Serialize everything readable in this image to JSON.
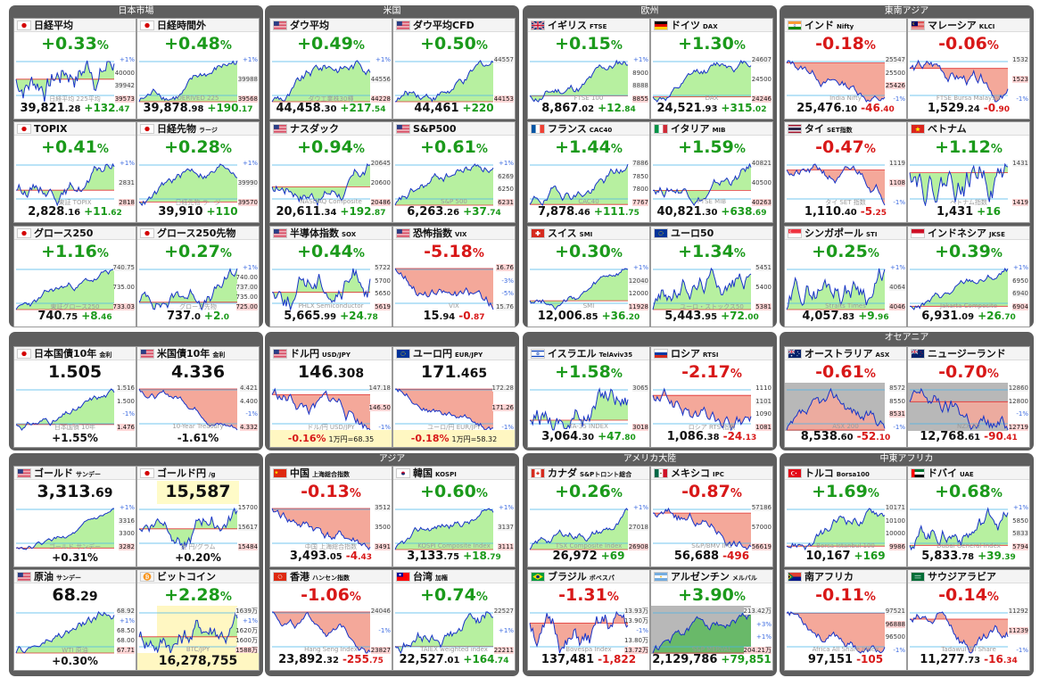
{
  "groups": [
    {
      "title": "日本市場"
    },
    {
      "title": "米国"
    },
    {
      "title": "欧州"
    },
    {
      "title": "東南アジア"
    },
    {
      "title": ""
    },
    {
      "title": ""
    },
    {
      "title": ""
    },
    {
      "title": "オセアニア"
    },
    {
      "title": ""
    },
    {
      "title": "アジア"
    },
    {
      "title": "アメリカ大陸"
    },
    {
      "title": "中東アフリカ"
    }
  ],
  "tiles": [
    {
      "name": "日経平均",
      "sub": "",
      "flag": "jp",
      "chg": "+0.33",
      "dir": "up",
      "ax": [
        "+1%",
        "40000",
        "39942",
        "39573"
      ],
      "axk": [
        "p",
        "",
        "w",
        "r"
      ],
      "vi": "39,821",
      "vd": ".28",
      "d": "+132",
      "dd": ".47",
      "wm": "日経平均 225平均"
    },
    {
      "name": "日経時間外",
      "sub": "",
      "flag": "jp",
      "chg": "+0.48",
      "dir": "up",
      "ax": [
        "+1%",
        "39988",
        "39568"
      ],
      "axk": [
        "p",
        "w",
        "r"
      ],
      "vi": "39,878",
      "vd": ".98",
      "d": "+190",
      "dd": ".17",
      "wm": "DERIVED 225"
    },
    {
      "name": "ダウ平均",
      "sub": "",
      "flag": "us",
      "chg": "+0.49",
      "dir": "up",
      "ax": [
        "+1%",
        "44556",
        "44228"
      ],
      "axk": [
        "p",
        "w",
        "r"
      ],
      "vi": "44,458",
      "vd": ".30",
      "d": "+217",
      "dd": ".54",
      "wm": "ダウ工業株30種"
    },
    {
      "name": "ダウ平均CFD",
      "sub": "",
      "flag": "us",
      "chg": "+0.50",
      "dir": "up",
      "ax": [
        "44557",
        "44153"
      ],
      "axk": [
        "w",
        "r"
      ],
      "vi": "44,461",
      "vd": "",
      "d": "+220",
      "dd": "",
      "wm": ""
    },
    {
      "name": "イギリス",
      "sub": "FTSE",
      "flag": "gb",
      "chg": "+0.15",
      "dir": "up",
      "ax": [
        "+1%",
        "8900",
        "8888",
        "8855"
      ],
      "axk": [
        "p",
        "",
        "w",
        "r"
      ],
      "vi": "8,867",
      "vd": ".02",
      "d": "+12",
      "dd": ".84",
      "wm": "FTSE 100"
    },
    {
      "name": "ドイツ",
      "sub": "DAX",
      "flag": "de",
      "chg": "+1.30",
      "dir": "up",
      "ax": [
        "24607",
        "24500",
        "24246"
      ],
      "axk": [
        "w",
        "",
        "r"
      ],
      "vi": "24,521",
      "vd": ".93",
      "d": "+315",
      "dd": ".02",
      "wm": "DAX"
    },
    {
      "name": "インド",
      "sub": "Nifty",
      "flag": "in",
      "chg": "-0.18",
      "dir": "dn",
      "ax": [
        "25547",
        "25500",
        "25426",
        "-1%"
      ],
      "axk": [
        "w",
        "",
        "r",
        "p"
      ],
      "vi": "25,476",
      "vd": ".10",
      "d": "-46",
      "dd": ".40",
      "wm": "India Nifty"
    },
    {
      "name": "マレーシア",
      "sub": "KLCI",
      "flag": "my",
      "chg": "-0.06",
      "dir": "dn",
      "ax": [
        "1532",
        "1523",
        "-1%"
      ],
      "axk": [
        "w",
        "r",
        "p"
      ],
      "vi": "1,529",
      "vd": ".24",
      "d": "-0",
      "dd": ".90",
      "wm": "FTSE Bursa Malaysia"
    },
    {
      "name": "TOPIX",
      "sub": "",
      "flag": "jp",
      "chg": "+0.41",
      "dir": "up",
      "ax": [
        "+1%",
        "2831",
        "2818"
      ],
      "axk": [
        "p",
        "w",
        "r"
      ],
      "vi": "2,828",
      "vd": ".16",
      "d": "+11",
      "dd": ".62",
      "wm": "東証 TOPIX"
    },
    {
      "name": "日経先物",
      "sub": "ラージ",
      "flag": "jp",
      "chg": "+0.28",
      "dir": "up",
      "ax": [
        "+1%",
        "39990",
        "39570"
      ],
      "axk": [
        "p",
        "w",
        "r"
      ],
      "vi": "39,910",
      "vd": "",
      "d": "+110",
      "dd": "",
      "wm": "日経先物 ラージ"
    },
    {
      "name": "ナスダック",
      "sub": "",
      "flag": "us",
      "chg": "+0.94",
      "dir": "up",
      "ax": [
        "20645",
        "20600",
        "20486"
      ],
      "axk": [
        "w",
        "",
        "r"
      ],
      "vi": "20,611",
      "vd": ".34",
      "d": "+192",
      "dd": ".87",
      "wm": "NASDAQ Composite"
    },
    {
      "name": "S&P500",
      "sub": "",
      "flag": "us",
      "chg": "+0.61",
      "dir": "up",
      "ax": [
        "+1%",
        "6269",
        "6250",
        "6231"
      ],
      "axk": [
        "p",
        "w",
        "",
        "r"
      ],
      "vi": "6,263",
      "vd": ".26",
      "d": "+37",
      "dd": ".74",
      "wm": "S&P 500"
    },
    {
      "name": "フランス",
      "sub": "CAC40",
      "flag": "fr",
      "chg": "+1.44",
      "dir": "up",
      "ax": [
        "7886",
        "7850",
        "7800",
        "7767"
      ],
      "axk": [
        "w",
        "",
        "",
        "r"
      ],
      "vi": "7,878",
      "vd": ".46",
      "d": "+111",
      "dd": ".75",
      "wm": "CAC40"
    },
    {
      "name": "イタリア",
      "sub": "MIB",
      "flag": "it",
      "chg": "+1.59",
      "dir": "up",
      "ax": [
        "40821",
        "40500",
        "40263"
      ],
      "axk": [
        "w",
        "",
        "r"
      ],
      "vi": "40,821",
      "vd": ".30",
      "d": "+638",
      "dd": ".69",
      "wm": "FTSE MIB"
    },
    {
      "name": "タイ",
      "sub": "SET指数",
      "flag": "th",
      "chg": "-0.47",
      "dir": "dn",
      "ax": [
        "1119",
        "1108",
        "-1%"
      ],
      "axk": [
        "w",
        "r",
        "p"
      ],
      "vi": "1,110",
      "vd": ".40",
      "d": "-5",
      "dd": ".25",
      "wm": "タイ SET 指数"
    },
    {
      "name": "ベトナム",
      "sub": "",
      "flag": "vn",
      "chg": "+1.12",
      "dir": "up",
      "ax": [
        "1431",
        "1419"
      ],
      "axk": [
        "w",
        "r"
      ],
      "vi": "1,431",
      "vd": "",
      "d": "+16",
      "dd": "",
      "wm": "ベトナム指数"
    },
    {
      "name": "グロース250",
      "sub": "",
      "flag": "jp",
      "chg": "+1.16",
      "dir": "up",
      "ax": [
        "740.75",
        "735.00",
        "733.03"
      ],
      "axk": [
        "w",
        "",
        "r"
      ],
      "vi": "740",
      "vd": ".75",
      "d": "+8",
      "dd": ".46",
      "wm": "東証グロース250"
    },
    {
      "name": "グロース250先物",
      "sub": "",
      "flag": "jp",
      "chg": "+0.27",
      "dir": "up",
      "ax": [
        "+1%",
        "740.00",
        "737.00",
        "735.00",
        "725.00"
      ],
      "axk": [
        "p",
        "",
        "w",
        "",
        "r"
      ],
      "vi": "737",
      "vd": ".0",
      "d": "+2",
      "dd": ".0",
      "wm": "グロース先物"
    },
    {
      "name": "半導体指数",
      "sub": "SOX",
      "flag": "us",
      "chg": "+0.44",
      "dir": "up",
      "ax": [
        "5722",
        "5700",
        "5650",
        "5619"
      ],
      "axk": [
        "w",
        "",
        "",
        "r"
      ],
      "vi": "5,665",
      "vd": ".99",
      "d": "+24",
      "dd": ".78",
      "wm": "PHLX Semiconductor"
    },
    {
      "name": "恐怖指数",
      "sub": "VIX",
      "flag": "us",
      "chg": "-5.18",
      "dir": "dn",
      "ax": [
        "16.76",
        "-3%",
        "-5%",
        "15.76"
      ],
      "axk": [
        "r",
        "p",
        "p",
        "w"
      ],
      "vi": "15",
      "vd": ".94",
      "d": "-0",
      "dd": ".87",
      "wm": "VIX"
    },
    {
      "name": "スイス",
      "sub": "SMI",
      "flag": "ch",
      "chg": "+0.30",
      "dir": "up",
      "ax": [
        "+1%",
        "12040",
        "12000",
        "11928"
      ],
      "axk": [
        "p",
        "w",
        "",
        "r"
      ],
      "vi": "12,006",
      "vd": ".85",
      "d": "+36",
      "dd": ".20",
      "wm": "SMI"
    },
    {
      "name": "ユーロ50",
      "sub": "",
      "flag": "eu",
      "chg": "+1.34",
      "dir": "up",
      "ax": [
        "5451",
        "5400",
        "5381"
      ],
      "axk": [
        "w",
        "",
        "r"
      ],
      "vi": "5,443",
      "vd": ".95",
      "d": "+72",
      "dd": ".00",
      "wm": "ユーロ・ストックス50"
    },
    {
      "name": "シンガポール",
      "sub": "STI",
      "flag": "sg",
      "chg": "+0.25",
      "dir": "up",
      "ax": [
        "+1%",
        "4064",
        "4046"
      ],
      "axk": [
        "p",
        "w",
        "r"
      ],
      "vi": "4,057",
      "vd": ".83",
      "d": "+9",
      "dd": ".96",
      "wm": "Straits Times"
    },
    {
      "name": "インドネシア",
      "sub": "JKSE",
      "flag": "id",
      "chg": "+0.39",
      "dir": "up",
      "ax": [
        "+1%",
        "6950",
        "6940",
        "6904"
      ],
      "axk": [
        "p",
        "",
        "w",
        "r"
      ],
      "vi": "6,931",
      "vd": ".09",
      "d": "+26",
      "dd": ".70",
      "wm": "Jakarta Composite"
    },
    {
      "name": "日本国債10年",
      "sub": "金利",
      "flag": "jp",
      "type": "bond",
      "big": "1.505",
      "bigd": "",
      "pct": "+1.55",
      "dir": "up",
      "ax": [
        "1.516",
        "1.500",
        "-1%",
        "1.476"
      ],
      "axk": [
        "w",
        "",
        "p",
        "r"
      ],
      "wm": "日本国債 10年"
    },
    {
      "name": "米国債10年",
      "sub": "金利",
      "flag": "us",
      "type": "bond",
      "big": "4.336",
      "bigd": "",
      "pct": "-1.61",
      "dir": "dn",
      "ax": [
        "4.421",
        "4.400",
        "-1%",
        "4.332"
      ],
      "axk": [
        "w",
        "",
        "p",
        "r"
      ],
      "wm": "10-Year Treasury"
    },
    {
      "name": "ドル円",
      "sub": "USD/JPY",
      "flag": "us",
      "type": "fx",
      "big": "146",
      "bigd": ".308",
      "pct": "-0.16",
      "dir": "dn",
      "sub2": "1万円=68.35",
      "ax": [
        "147.18",
        "146.50",
        "-1%"
      ],
      "axk": [
        "w",
        "r",
        "p"
      ],
      "wm": "ドル/円 USD/JPY"
    },
    {
      "name": "ユーロ円",
      "sub": "EUR/JPY",
      "flag": "eu",
      "type": "fx",
      "big": "171",
      "bigd": ".465",
      "pct": "-0.18",
      "dir": "dn",
      "sub2": "1万円=58.32",
      "ax": [
        "172.28",
        "171.26",
        "-1%"
      ],
      "axk": [
        "w",
        "r",
        "p"
      ],
      "wm": "ユーロ/円 EUR/JPY"
    },
    {
      "name": "イスラエル",
      "sub": "TelAviv35",
      "flag": "il",
      "chg": "+1.58",
      "dir": "up",
      "ax": [
        "3065",
        "3018"
      ],
      "axk": [
        "w",
        "r"
      ],
      "vi": "3,064",
      "vd": ".30",
      "d": "+47",
      "dd": ".80",
      "wm": "TA-35 INDEX"
    },
    {
      "name": "ロシア",
      "sub": "RTSI",
      "flag": "ru",
      "chg": "-2.17",
      "dir": "dn",
      "ax": [
        "1110",
        "1101",
        "1090",
        "1081"
      ],
      "axk": [
        "",
        "w",
        "",
        "r"
      ],
      "vi": "1,086",
      "vd": ".38",
      "d": "-24",
      "dd": ".13",
      "wm": "ロシア RTS 指数"
    },
    {
      "name": "オーストラリア",
      "sub": "ASX",
      "flag": "au",
      "chg": "-0.61",
      "dir": "dn",
      "ax": [
        "8572",
        "8550",
        "8531",
        "-1%"
      ],
      "axk": [
        "w",
        "",
        "r",
        "p"
      ],
      "vi": "8,538",
      "vd": ".60",
      "d": "-52",
      "dd": ".10",
      "wm": "ASX 200"
    },
    {
      "name": "ニュージーランド",
      "sub": "",
      "flag": "nz",
      "chg": "-0.70",
      "dir": "dn",
      "ax": [
        "12860",
        "12800",
        "-1%",
        "12719"
      ],
      "axk": [
        "w",
        "",
        "p",
        "r"
      ],
      "vi": "12,768",
      "vd": ".61",
      "d": "-90",
      "dd": ".41",
      "wm": "NZX 50"
    },
    {
      "name": "ゴールド",
      "sub": "サンデー",
      "flag": "us",
      "type": "bigval",
      "big": "3,313",
      "bigd": ".69",
      "pct": "+0.31",
      "dir": "up",
      "ax": [
        "+1%",
        "3316",
        "3300",
        "3282"
      ],
      "axk": [
        "p",
        "w",
        "",
        "r"
      ],
      "wm": "ゴールド サンデー"
    },
    {
      "name": "ゴールド円",
      "sub": "/g",
      "flag": "jp",
      "type": "bigval",
      "hl": true,
      "big": "15,587",
      "bigd": "",
      "pct": "+0.20",
      "dir": "up",
      "ax": [
        "15700",
        "15617",
        "15484"
      ],
      "axk": [
        "",
        "w",
        "r"
      ],
      "wm": "金 円/グラム"
    },
    {
      "name": "中国",
      "sub": "上海総合指数",
      "flag": "cn",
      "chg": "-0.13",
      "dir": "dn",
      "ax": [
        "3512",
        "3500",
        "3491"
      ],
      "axk": [
        "w",
        "",
        "r"
      ],
      "vi": "3,493",
      "vd": ".05",
      "d": "-4",
      "dd": ".43",
      "wm": "中国 上海総合指数"
    },
    {
      "name": "韓国",
      "sub": "KOSPI",
      "flag": "kr",
      "chg": "+0.60",
      "dir": "up",
      "ax": [
        "+1%",
        "3137",
        "3111"
      ],
      "axk": [
        "p",
        "w",
        "r"
      ],
      "vi": "3,133",
      "vd": ".75",
      "d": "+18",
      "dd": ".79",
      "wm": "KOSPI Composite Index"
    },
    {
      "name": "カナダ",
      "sub": "S&Pトロント総合",
      "flag": "ca",
      "chg": "+0.26",
      "dir": "up",
      "ax": [
        "+1%",
        "27018",
        "26908"
      ],
      "axk": [
        "p",
        "w",
        "r"
      ],
      "vi": "26,972",
      "vd": "",
      "d": "+69",
      "dd": "",
      "wm": "TSX Composite Index"
    },
    {
      "name": "メキシコ",
      "sub": "IPC",
      "flag": "mx",
      "chg": "-0.87",
      "dir": "dn",
      "ax": [
        "57186",
        "57000",
        "56619"
      ],
      "axk": [
        "w",
        "",
        "r"
      ],
      "vi": "56,688",
      "vd": "",
      "d": "-496",
      "dd": "",
      "wm": "S&P/BMV IPC"
    },
    {
      "name": "トルコ",
      "sub": "Borsa100",
      "flag": "tr",
      "chg": "+1.69",
      "dir": "up",
      "ax": [
        "10171",
        "10100",
        "10000",
        "9986"
      ],
      "axk": [
        "w",
        "",
        "",
        "r"
      ],
      "vi": "10,167",
      "vd": "",
      "d": "+169",
      "dd": "",
      "wm": "Borsa Istanbul 100"
    },
    {
      "name": "ドバイ",
      "sub": "UAE",
      "flag": "ae",
      "chg": "+0.68",
      "dir": "up",
      "ax": [
        "+1%",
        "5850",
        "5833",
        "5794"
      ],
      "axk": [
        "p",
        "",
        "w",
        "r"
      ],
      "vi": "5,833",
      "vd": ".78",
      "d": "+39",
      "dd": ".39",
      "wm": "Dubai General Index"
    },
    {
      "name": "原油",
      "sub": "サンデー",
      "flag": "us",
      "type": "bigval",
      "big": "68",
      "bigd": ".29",
      "pct": "+0.30",
      "dir": "up",
      "ax": [
        "68.92",
        "+1%",
        "68.50",
        "68.00",
        "67.71"
      ],
      "axk": [
        "w",
        "p",
        "",
        "",
        "r"
      ],
      "wm": "WTI 原油"
    },
    {
      "name": "ビットコイン",
      "sub": "",
      "flag": "btc",
      "type": "bigval",
      "big": "16,278,755",
      "bigd": "",
      "pct": "+2.28",
      "dir": "up",
      "btc": true,
      "ax": [
        "1639万",
        "+1%",
        "1620万",
        "1600万",
        "1588万"
      ],
      "axk": [
        "w",
        "p",
        "",
        "",
        "r"
      ],
      "wm": "BTC/JPY"
    },
    {
      "name": "香港",
      "sub": "ハンセン指数",
      "flag": "hk",
      "chg": "-1.06",
      "dir": "dn",
      "ax": [
        "24046",
        "-1%",
        "23827"
      ],
      "axk": [
        "w",
        "p",
        "r"
      ],
      "vi": "23,892",
      "vd": ".32",
      "d": "-255",
      "dd": ".75",
      "wm": "Hang Seng Index"
    },
    {
      "name": "台湾",
      "sub": "加権",
      "flag": "tw",
      "chg": "+0.74",
      "dir": "up",
      "ax": [
        "22527",
        "+1%",
        "22211"
      ],
      "axk": [
        "w",
        "p",
        "r"
      ],
      "vi": "22,527",
      "vd": ".01",
      "d": "+164",
      "dd": ".74",
      "wm": "TAIEX weighted index"
    },
    {
      "name": "ブラジル",
      "sub": "ボベスパ",
      "flag": "br",
      "chg": "-1.31",
      "dir": "dn",
      "ax": [
        "13.93万",
        "13.90万",
        "-1%",
        "13.80万",
        "13.72万"
      ],
      "axk": [
        "w",
        "",
        "p",
        "",
        "r"
      ],
      "vi": "137,481",
      "vd": "",
      "d": "-1,822",
      "dd": "",
      "wm": "Bovespa Index"
    },
    {
      "name": "アルゼンチン",
      "sub": "メルバル",
      "flag": "ar",
      "chg": "+3.90",
      "dir": "up",
      "ax": [
        "213.42万",
        "+3%",
        "+1%",
        "204.21万"
      ],
      "axk": [
        "w",
        "p",
        "p",
        "r"
      ],
      "vi": "2,129,786",
      "vd": "",
      "d": "+79,851",
      "dd": "",
      "wm": "S&P MERVAL"
    },
    {
      "name": "南アフリカ",
      "sub": "",
      "flag": "za",
      "chg": "-0.11",
      "dir": "dn",
      "ax": [
        "97521",
        "96888",
        "96500",
        "-1%"
      ],
      "axk": [
        "w",
        "r",
        "",
        "p"
      ],
      "vi": "97,151",
      "vd": "",
      "d": "-105",
      "dd": "",
      "wm": "Africa All Share Index"
    },
    {
      "name": "サウジアラビア",
      "sub": "",
      "flag": "sa",
      "chg": "-0.14",
      "dir": "dn",
      "ax": [
        "11292",
        "11239",
        "-1%"
      ],
      "axk": [
        "w",
        "r",
        "p"
      ],
      "vi": "11,277",
      "vd": ".73",
      "d": "-16",
      "dd": ".34",
      "wm": "Tadawul All Share"
    }
  ]
}
